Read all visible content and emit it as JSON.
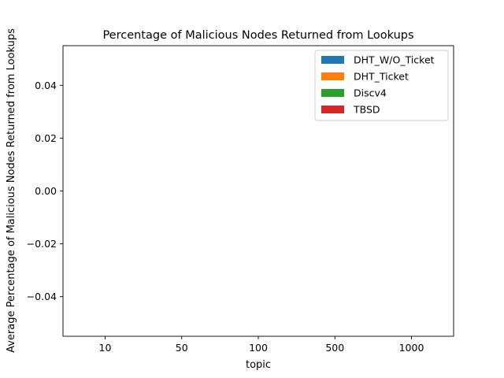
{
  "chart_data": {
    "type": "bar",
    "title": "Percentage of Malicious Nodes Returned from Lookups",
    "xlabel": "topic",
    "ylabel": "Average Percentage of Malicious Nodes Returned from Lookups",
    "categories": [
      "10",
      "50",
      "100",
      "500",
      "1000"
    ],
    "ylim": [
      -0.055,
      0.055
    ],
    "yticks": [
      -0.04,
      -0.02,
      0.0,
      0.02,
      0.04
    ],
    "ytick_labels": [
      "−0.04",
      "−0.02",
      "0.00",
      "0.02",
      "0.04"
    ],
    "series": [
      {
        "name": "DHT_W/O_Ticket",
        "color": "#1f77b4",
        "values": [
          0,
          0,
          0,
          0,
          0
        ]
      },
      {
        "name": "DHT_Ticket",
        "color": "#ff7f0e",
        "values": [
          0,
          0,
          0,
          0,
          0
        ]
      },
      {
        "name": "Discv4",
        "color": "#2ca02c",
        "values": [
          0,
          0,
          0,
          0,
          0
        ]
      },
      {
        "name": "TBSD",
        "color": "#d62728",
        "values": [
          0,
          0,
          0,
          0,
          0
        ]
      }
    ],
    "grid": false,
    "legend": "top-right"
  }
}
